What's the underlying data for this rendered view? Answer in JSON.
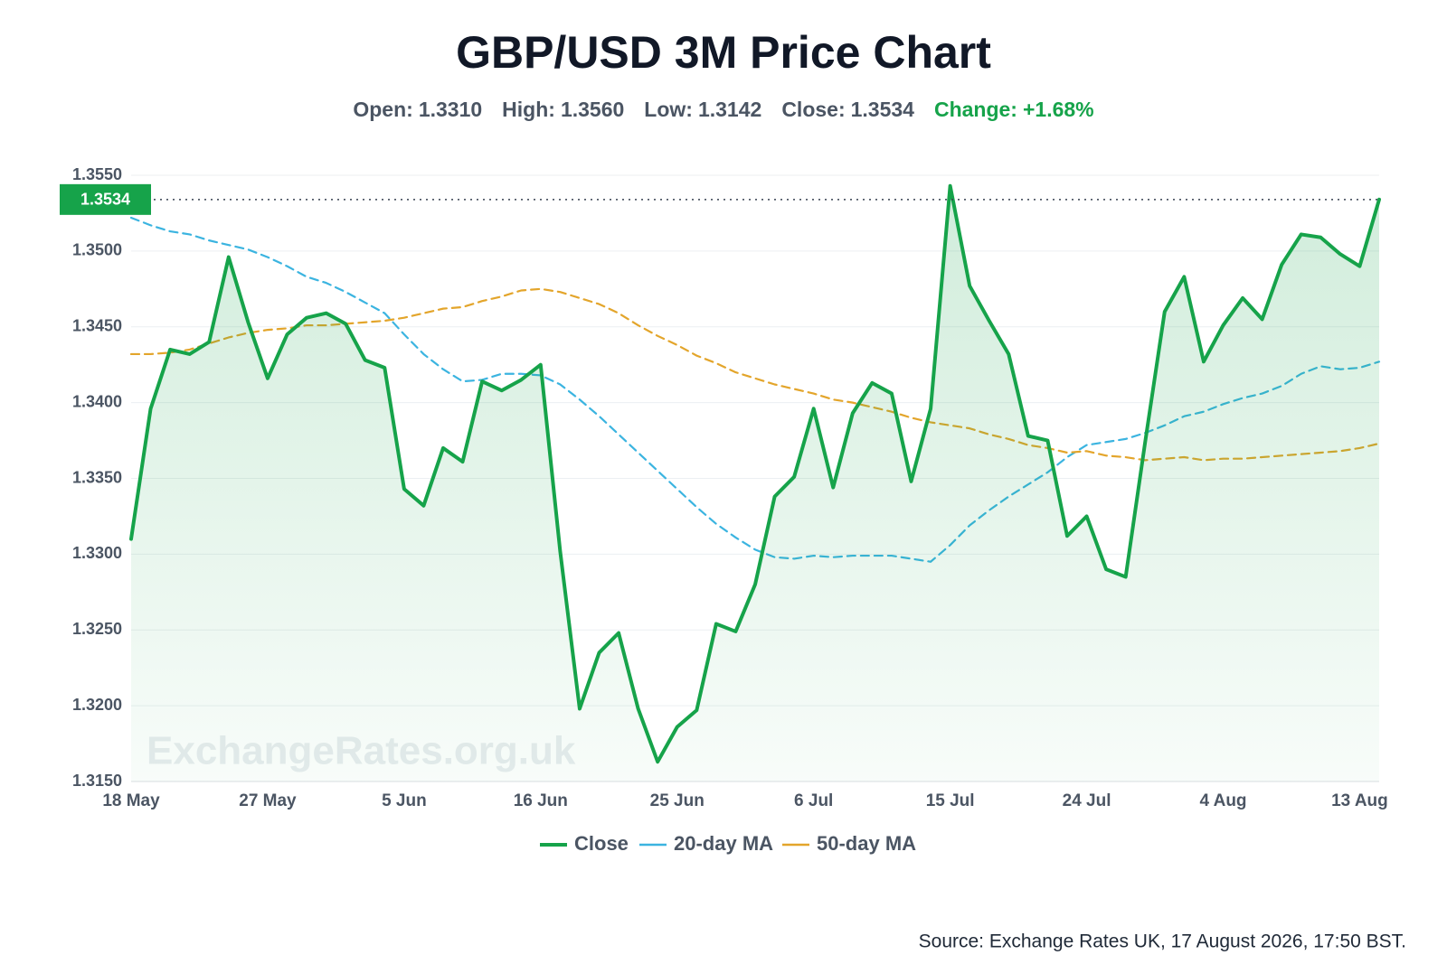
{
  "chart_data": {
    "type": "line",
    "title": "GBP/USD 3M Price Chart",
    "stats": [
      {
        "label": "Open:",
        "value": "1.3310"
      },
      {
        "label": "High:",
        "value": "1.3560"
      },
      {
        "label": "Low:",
        "value": "1.3142"
      },
      {
        "label": "Close:",
        "value": "1.3534"
      }
    ],
    "change": {
      "label": "Change:",
      "value": "+1.68%",
      "color": "#16a34a"
    },
    "close_label": "1.3534",
    "watermark": "ExchangeRates.org.uk",
    "source": "Source: Exchange Rates UK, 17 August 2026, 17:50 BST.",
    "categories": [
      "18 May",
      null,
      null,
      null,
      null,
      null,
      null,
      "27 May",
      null,
      null,
      null,
      null,
      null,
      null,
      "5 Jun",
      null,
      null,
      null,
      null,
      null,
      null,
      "16 Jun",
      null,
      null,
      null,
      null,
      null,
      null,
      "25 Jun",
      null,
      null,
      null,
      null,
      null,
      null,
      "6 Jul",
      null,
      null,
      null,
      null,
      null,
      null,
      "15 Jul",
      null,
      null,
      null,
      null,
      null,
      null,
      "24 Jul",
      null,
      null,
      null,
      null,
      null,
      null,
      "4 Aug",
      null,
      null,
      null,
      null,
      null,
      null,
      "13 Aug",
      null
    ],
    "series": [
      {
        "name": "Close",
        "color": "#16a34a",
        "dashed": false,
        "fill": true,
        "values": [
          1.331,
          1.3396,
          1.3435,
          1.3432,
          1.344,
          1.3496,
          1.3453,
          1.3416,
          1.3445,
          1.3456,
          1.3459,
          1.3452,
          1.3428,
          1.3423,
          1.3343,
          1.3332,
          1.337,
          1.3361,
          1.3414,
          1.3408,
          1.3415,
          1.3425,
          1.3302,
          1.3198,
          1.3235,
          1.3248,
          1.3198,
          1.3163,
          1.3186,
          1.3197,
          1.3254,
          1.3249,
          1.328,
          1.3338,
          1.3351,
          1.3396,
          1.3344,
          1.3393,
          1.3413,
          1.3406,
          1.3348,
          1.3396,
          1.3543,
          1.3477,
          1.3454,
          1.3432,
          1.3378,
          1.3375,
          1.3312,
          1.3325,
          1.329,
          1.3285,
          1.3374,
          1.346,
          1.3483,
          1.3427,
          1.3451,
          1.3469,
          1.3455,
          1.3491,
          1.3511,
          1.3509,
          1.3498,
          1.349,
          1.3534
        ]
      },
      {
        "name": "20-day MA",
        "color": "#3bb4e0",
        "dashed": true,
        "fill": false,
        "values": [
          1.3522,
          1.3517,
          1.3513,
          1.3511,
          1.3507,
          1.3504,
          1.3501,
          1.3496,
          1.349,
          1.3483,
          1.3479,
          1.3473,
          1.3466,
          1.3459,
          1.3445,
          1.3432,
          1.3422,
          1.3414,
          1.3415,
          1.3419,
          1.3419,
          1.3418,
          1.3412,
          1.3402,
          1.3391,
          1.3379,
          1.3367,
          1.3355,
          1.3343,
          1.3331,
          1.332,
          1.3311,
          1.3303,
          1.3298,
          1.3297,
          1.3299,
          1.3298,
          1.3299,
          1.3299,
          1.3299,
          1.3297,
          1.3295,
          1.3306,
          1.3319,
          1.3329,
          1.3338,
          1.3346,
          1.3354,
          1.3364,
          1.3372,
          1.3374,
          1.3376,
          1.338,
          1.3385,
          1.3391,
          1.3394,
          1.3399,
          1.3403,
          1.3406,
          1.3411,
          1.3419,
          1.3424,
          1.3422,
          1.3423,
          1.3427
        ]
      },
      {
        "name": "50-day MA",
        "color": "#e3a52b",
        "dashed": true,
        "fill": false,
        "values": [
          1.3432,
          1.3432,
          1.3433,
          1.3435,
          1.3439,
          1.3443,
          1.3446,
          1.3448,
          1.3449,
          1.3451,
          1.3451,
          1.3452,
          1.3453,
          1.3454,
          1.3456,
          1.3459,
          1.3462,
          1.3463,
          1.3467,
          1.347,
          1.3474,
          1.3475,
          1.3473,
          1.3469,
          1.3465,
          1.3459,
          1.3451,
          1.3444,
          1.3438,
          1.3431,
          1.3426,
          1.342,
          1.3416,
          1.3412,
          1.3409,
          1.3406,
          1.3402,
          1.34,
          1.3397,
          1.3394,
          1.339,
          1.3387,
          1.3385,
          1.3383,
          1.3379,
          1.3376,
          1.3372,
          1.337,
          1.3367,
          1.3368,
          1.3365,
          1.3364,
          1.3362,
          1.3363,
          1.3364,
          1.3362,
          1.3363,
          1.3363,
          1.3364,
          1.3365,
          1.3366,
          1.3367,
          1.3368,
          1.337,
          1.3373
        ]
      }
    ],
    "ylim": [
      1.315,
      1.355
    ],
    "yticks": [
      {
        "value": 1.315,
        "label": "1.3150"
      },
      {
        "value": 1.32,
        "label": "1.3200"
      },
      {
        "value": 1.325,
        "label": "1.3250"
      },
      {
        "value": 1.33,
        "label": "1.3300"
      },
      {
        "value": 1.335,
        "label": "1.3350"
      },
      {
        "value": 1.34,
        "label": "1.3400"
      },
      {
        "value": 1.345,
        "label": "1.3450"
      },
      {
        "value": 1.35,
        "label": "1.3500"
      },
      {
        "value": 1.355,
        "label": "1.3550"
      }
    ],
    "grid": true,
    "legend": "bottom"
  }
}
